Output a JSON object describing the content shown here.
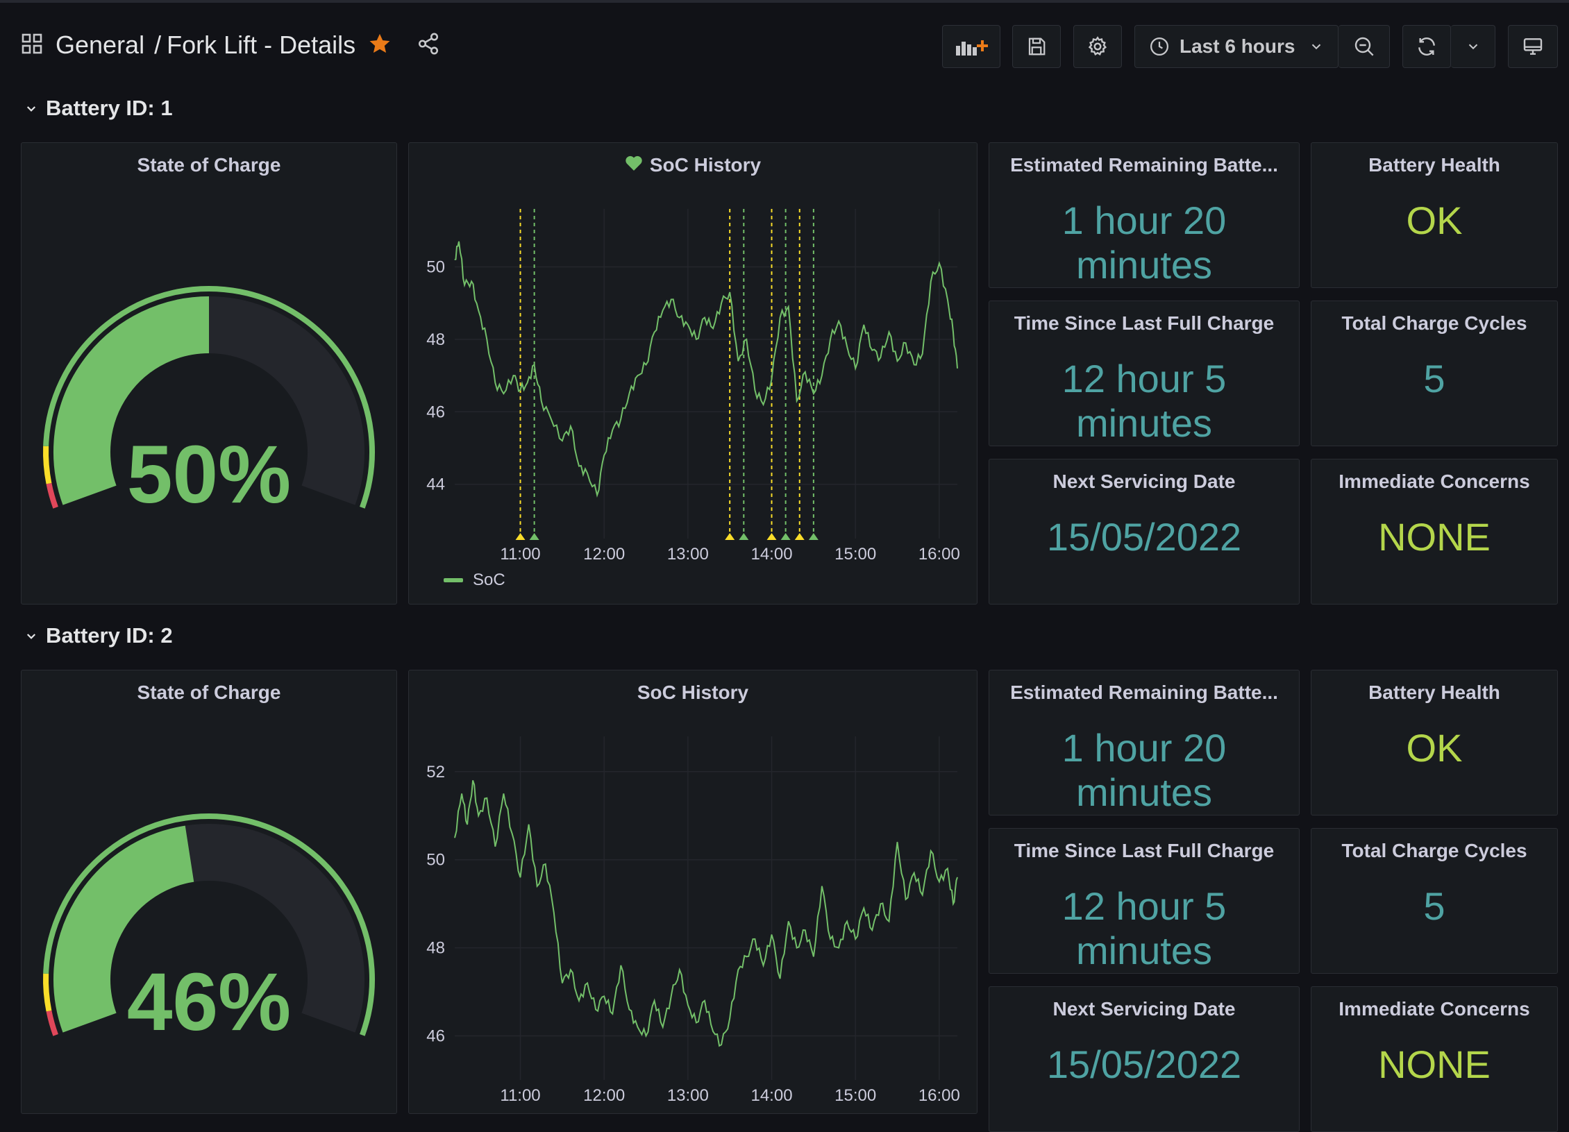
{
  "dashboard": {
    "folder": "General",
    "separator": "/",
    "title": "Fork Lift - Details",
    "starred_color": "#eb7b18",
    "time_range": "Last 6 hours",
    "toolbar_icons": [
      "grid-icon",
      "star-icon",
      "share-icon",
      "add-panel-icon",
      "save-icon",
      "gear-icon",
      "clock-icon",
      "chevron-down-icon",
      "zoom-out-icon",
      "refresh-icon",
      "tv-icon"
    ]
  },
  "rows": [
    {
      "title": "Battery ID: 1",
      "gauge": {
        "title": "State of Charge",
        "value": 50,
        "display": "50%"
      },
      "history": {
        "title": "SoC History",
        "has_alert_heart": true,
        "legend": "SoC",
        "chart_data": {
          "type": "line",
          "x_ticks": [
            "11:00",
            "12:00",
            "13:00",
            "14:00",
            "15:00",
            "16:00"
          ],
          "y_ticks": [
            44,
            46,
            48,
            50
          ],
          "ylim": [
            42.5,
            51.6
          ],
          "xlim": [
            "10:13",
            "16:13"
          ],
          "series": [
            {
              "name": "SoC",
              "color": "#73bf69",
              "points": [
                [
                  "10:13",
                  50.2
                ],
                [
                  "10:16",
                  50.7
                ],
                [
                  "10:20",
                  49.5
                ],
                [
                  "10:25",
                  49.6
                ],
                [
                  "10:30",
                  48.8
                ],
                [
                  "10:36",
                  48.0
                ],
                [
                  "10:42",
                  46.8
                ],
                [
                  "10:48",
                  46.5
                ],
                [
                  "10:55",
                  47.0
                ],
                [
                  "11:00",
                  46.6
                ],
                [
                  "11:05",
                  46.8
                ],
                [
                  "11:10",
                  47.3
                ],
                [
                  "11:15",
                  46.3
                ],
                [
                  "11:22",
                  45.8
                ],
                [
                  "11:30",
                  45.2
                ],
                [
                  "11:36",
                  45.6
                ],
                [
                  "11:42",
                  44.5
                ],
                [
                  "11:48",
                  44.3
                ],
                [
                  "11:55",
                  43.7
                ],
                [
                  "12:00",
                  44.8
                ],
                [
                  "12:06",
                  45.5
                ],
                [
                  "12:12",
                  45.8
                ],
                [
                  "12:18",
                  46.5
                ],
                [
                  "12:24",
                  47.0
                ],
                [
                  "12:30",
                  47.3
                ],
                [
                  "12:36",
                  48.2
                ],
                [
                  "12:42",
                  48.8
                ],
                [
                  "12:48",
                  49.1
                ],
                [
                  "12:54",
                  48.6
                ],
                [
                  "13:00",
                  48.4
                ],
                [
                  "13:06",
                  48.0
                ],
                [
                  "13:12",
                  48.6
                ],
                [
                  "13:18",
                  48.3
                ],
                [
                  "13:24",
                  49.0
                ],
                [
                  "13:30",
                  49.3
                ],
                [
                  "13:36",
                  47.4
                ],
                [
                  "13:42",
                  48.0
                ],
                [
                  "13:48",
                  46.6
                ],
                [
                  "13:54",
                  46.2
                ],
                [
                  "14:00",
                  46.9
                ],
                [
                  "14:06",
                  48.6
                ],
                [
                  "14:12",
                  48.9
                ],
                [
                  "14:18",
                  46.3
                ],
                [
                  "14:24",
                  47.1
                ],
                [
                  "14:30",
                  46.5
                ],
                [
                  "14:36",
                  47.0
                ],
                [
                  "14:42",
                  48.0
                ],
                [
                  "14:48",
                  48.5
                ],
                [
                  "14:54",
                  47.8
                ],
                [
                  "15:00",
                  47.2
                ],
                [
                  "15:06",
                  48.4
                ],
                [
                  "15:12",
                  47.7
                ],
                [
                  "15:18",
                  47.5
                ],
                [
                  "15:24",
                  48.2
                ],
                [
                  "15:30",
                  47.4
                ],
                [
                  "15:36",
                  47.9
                ],
                [
                  "15:42",
                  47.3
                ],
                [
                  "15:48",
                  47.6
                ],
                [
                  "15:54",
                  49.6
                ],
                [
                  "16:00",
                  50.1
                ],
                [
                  "16:06",
                  49.1
                ],
                [
                  "16:10",
                  48.2
                ],
                [
                  "16:13",
                  47.2
                ]
              ]
            }
          ],
          "annotations": [
            {
              "x": "11:00",
              "color": "#fade2a"
            },
            {
              "x": "11:10",
              "color": "#73bf69"
            },
            {
              "x": "13:30",
              "color": "#fade2a"
            },
            {
              "x": "13:40",
              "color": "#73bf69"
            },
            {
              "x": "14:00",
              "color": "#fade2a"
            },
            {
              "x": "14:10",
              "color": "#73bf69"
            },
            {
              "x": "14:20",
              "color": "#fade2a"
            },
            {
              "x": "14:30",
              "color": "#73bf69"
            }
          ]
        }
      },
      "stats": [
        {
          "title": "Estimated Remaining Batte...",
          "line1": "1 hour 20",
          "line2": "minutes",
          "color": "teal"
        },
        {
          "title": "Battery Health",
          "line1": "OK",
          "line2": "",
          "color": "lime"
        },
        {
          "title": "Time Since Last Full Charge",
          "line1": "12 hour 5",
          "line2": "minutes",
          "color": "teal"
        },
        {
          "title": "Total Charge Cycles",
          "line1": "5",
          "line2": "",
          "color": "teal"
        },
        {
          "title": "Next Servicing Date",
          "line1": "15/05/2022",
          "line2": "",
          "color": "teal"
        },
        {
          "title": "Immediate Concerns",
          "line1": "NONE",
          "line2": "",
          "color": "lime"
        }
      ]
    },
    {
      "title": "Battery ID: 2",
      "gauge": {
        "title": "State of Charge",
        "value": 46,
        "display": "46%"
      },
      "history": {
        "title": "SoC History",
        "has_alert_heart": false,
        "legend": "",
        "chart_data": {
          "type": "line",
          "x_ticks": [
            "11:00",
            "12:00",
            "13:00",
            "14:00",
            "15:00",
            "16:00"
          ],
          "y_ticks": [
            46,
            48,
            50,
            52
          ],
          "ylim": [
            45.0,
            52.8
          ],
          "xlim": [
            "10:13",
            "16:13"
          ],
          "series": [
            {
              "name": "",
              "color": "#73bf69",
              "points": [
                [
                  "10:13",
                  50.5
                ],
                [
                  "10:18",
                  51.5
                ],
                [
                  "10:22",
                  50.8
                ],
                [
                  "10:26",
                  51.8
                ],
                [
                  "10:30",
                  51.0
                ],
                [
                  "10:36",
                  51.4
                ],
                [
                  "10:42",
                  50.3
                ],
                [
                  "10:48",
                  51.5
                ],
                [
                  "10:54",
                  50.6
                ],
                [
                  "11:00",
                  49.6
                ],
                [
                  "11:06",
                  50.8
                ],
                [
                  "11:12",
                  49.4
                ],
                [
                  "11:18",
                  49.9
                ],
                [
                  "11:24",
                  48.8
                ],
                [
                  "11:30",
                  47.2
                ],
                [
                  "11:36",
                  47.5
                ],
                [
                  "11:42",
                  46.8
                ],
                [
                  "11:48",
                  47.2
                ],
                [
                  "11:54",
                  46.6
                ],
                [
                  "12:00",
                  46.9
                ],
                [
                  "12:06",
                  46.5
                ],
                [
                  "12:12",
                  47.6
                ],
                [
                  "12:18",
                  46.6
                ],
                [
                  "12:24",
                  46.2
                ],
                [
                  "12:30",
                  46.0
                ],
                [
                  "12:36",
                  46.8
                ],
                [
                  "12:42",
                  46.2
                ],
                [
                  "12:48",
                  46.9
                ],
                [
                  "12:54",
                  47.5
                ],
                [
                  "13:00",
                  46.7
                ],
                [
                  "13:06",
                  46.3
                ],
                [
                  "13:12",
                  46.8
                ],
                [
                  "13:18",
                  46.1
                ],
                [
                  "13:24",
                  45.8
                ],
                [
                  "13:30",
                  46.4
                ],
                [
                  "13:36",
                  47.5
                ],
                [
                  "13:42",
                  47.8
                ],
                [
                  "13:48",
                  48.2
                ],
                [
                  "13:54",
                  47.6
                ],
                [
                  "14:00",
                  48.3
                ],
                [
                  "14:06",
                  47.3
                ],
                [
                  "14:12",
                  48.6
                ],
                [
                  "14:18",
                  48.0
                ],
                [
                  "14:24",
                  48.4
                ],
                [
                  "14:30",
                  47.8
                ],
                [
                  "14:36",
                  49.4
                ],
                [
                  "14:42",
                  48.2
                ],
                [
                  "14:48",
                  48.0
                ],
                [
                  "14:54",
                  48.6
                ],
                [
                  "15:00",
                  48.2
                ],
                [
                  "15:06",
                  48.9
                ],
                [
                  "15:12",
                  48.4
                ],
                [
                  "15:18",
                  49.0
                ],
                [
                  "15:24",
                  48.6
                ],
                [
                  "15:30",
                  50.4
                ],
                [
                  "15:36",
                  49.1
                ],
                [
                  "15:42",
                  49.7
                ],
                [
                  "15:48",
                  49.2
                ],
                [
                  "15:54",
                  50.2
                ],
                [
                  "16:00",
                  49.5
                ],
                [
                  "16:06",
                  49.8
                ],
                [
                  "16:10",
                  49.0
                ],
                [
                  "16:13",
                  49.6
                ]
              ]
            }
          ],
          "annotations": []
        }
      },
      "stats": [
        {
          "title": "Estimated Remaining Batte...",
          "line1": "1 hour 20",
          "line2": "minutes",
          "color": "teal"
        },
        {
          "title": "Battery Health",
          "line1": "OK",
          "line2": "",
          "color": "lime"
        },
        {
          "title": "Time Since Last Full Charge",
          "line1": "12 hour 5",
          "line2": "minutes",
          "color": "teal"
        },
        {
          "title": "Total Charge Cycles",
          "line1": "5",
          "line2": "",
          "color": "teal"
        },
        {
          "title": "Next Servicing Date",
          "line1": "15/05/2022",
          "line2": "",
          "color": "teal"
        },
        {
          "title": "Immediate Concerns",
          "line1": "NONE",
          "line2": "",
          "color": "lime"
        }
      ]
    }
  ]
}
